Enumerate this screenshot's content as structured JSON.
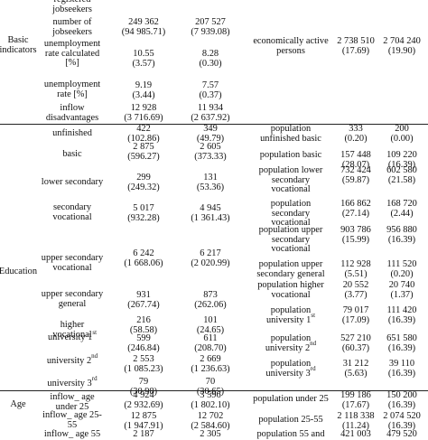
{
  "basic": {
    "group": "Basic indicators",
    "rows": [
      {
        "label": "registered jobseekers",
        "v1": "",
        "v2": ""
      },
      {
        "label": "number of jobseekers",
        "v1": "249 362",
        "s1": "(94 985.71)",
        "v2": "207 527",
        "s2": "(7 939.08)"
      },
      {
        "label": "unemployment rate calculated [%]",
        "v1": "10.55",
        "s1": "(3.57)",
        "v2": "8.28",
        "s2": "(0.30)"
      },
      {
        "label": "unemployment rate [%]",
        "v1": "9.19",
        "s1": "(3.44)",
        "v2": "7.57",
        "s2": "(0.37)"
      },
      {
        "label": "inflow disadvantages",
        "v1": "12 928",
        "s1": "(3 716.69)",
        "v2": "11 934",
        "s2": "(2 637.92)"
      }
    ],
    "right_label": "economically active persons",
    "right_v1": "2 738 510",
    "right_s1": "(17.69)",
    "right_v2": "2 704 240",
    "right_s2": "(19.90)"
  },
  "education": {
    "group": "Education",
    "rows": [
      {
        "label": "unfinished",
        "v1": "422",
        "s1": "(102.86)",
        "v2": "349",
        "s2": "(49.79)",
        "rlabel": "population unfinished basic",
        "r1": "333",
        "rs1": "(0.20)",
        "r2": "200",
        "rs2": "(0.00)"
      },
      {
        "label": "basic",
        "v1": "2 875",
        "s1": "(596.27)",
        "v2": "2 605",
        "s2": "(373.33)",
        "rlabel": "population basic",
        "r1": "157 448",
        "rs1": "(28.07)",
        "r2": "109 220",
        "rs2": "(16.39)"
      },
      {
        "label": "lower secondary",
        "v1": "299",
        "s1": "(249.32)",
        "v2": "131",
        "s2": "(53.36)",
        "rlabel": "population lower secondary vocational",
        "r1": "732 424",
        "rs1": "(59.87)",
        "r2": "602 580",
        "rs2": "(21.58)"
      },
      {
        "label": "secondary vocational",
        "v1": "5 017",
        "s1": "(932.28)",
        "v2": "4 945",
        "s2": "(1 361.43)",
        "rlabel": "population secondary vocational",
        "r1": "166 862",
        "rs1": "(27.14)",
        "r2": "168 720",
        "rs2": "(2.44)"
      },
      {
        "label": "upper secondary vocational",
        "v1": "6 242",
        "s1": "(1 668.06)",
        "v2": "6 217",
        "s2": "(2 020.99)",
        "rlabel": "population upper secondary vocational",
        "r1": "903 786",
        "rs1": "(15.99)",
        "r2": "956 880",
        "rs2": "(16.39)"
      },
      {
        "label": "upper secondary general",
        "v1": "931",
        "s1": "(267.74)",
        "v2": "873",
        "s2": "(262.06)",
        "rlabel": "population upper secondary general",
        "r1": "112 928",
        "rs1": "(5.51)",
        "r2": "111 520",
        "rs2": "(0.20)"
      },
      {
        "label": "higher vocational",
        "v1": "216",
        "s1": "(58.58)",
        "v2": "101",
        "s2": "(24.65)",
        "rlabel": "population higher vocational",
        "r1": "20 552",
        "rs1": "(3.77)",
        "r2": "20 740",
        "rs2": "(1.37)"
      },
      {
        "label": "university 1st",
        "v1": "599",
        "s1": "(246.84)",
        "v2": "611",
        "s2": "(208.70)",
        "rlabel": "population university 1st",
        "r1": "79 017",
        "rs1": "(17.09)",
        "r2": "111 420",
        "rs2": "(16.39)"
      },
      {
        "label": "university 2nd",
        "v1": "2 553",
        "s1": "(1 085.23)",
        "v2": "2 669",
        "s2": "(1 236.63)",
        "rlabel": "population university 2nd",
        "r1": "527 210",
        "rs1": "(60.37)",
        "r2": "651 580",
        "rs2": "(16.39)"
      },
      {
        "label": "university 3rd",
        "v1": "79",
        "s1": "(30.98)",
        "v2": "70",
        "s2": "(30.65)",
        "rlabel": "population university 3rd",
        "r1": "31 212",
        "rs1": "(5.63)",
        "r2": "39 110",
        "rs2": "(16.39)"
      }
    ]
  },
  "age": {
    "group": "Age",
    "rows": [
      {
        "label": "inflow_ age under 25",
        "v1": "4 924",
        "s1": "(2 932.69)",
        "v2": "3 596",
        "s2": "(1 802.10)",
        "rlabel": "population under 25",
        "r1": "199 186",
        "rs1": "(17.67)",
        "r2": "150 200",
        "rs2": "(16.39)"
      },
      {
        "label": "inflow_ age 25-55",
        "v1": "12 875",
        "s1": "(1 947.91)",
        "v2": "12 702",
        "s2": "(2 584.60)",
        "rlabel": "population 25-55",
        "r1": "2 118 338",
        "rs1": "(11.24)",
        "r2": "2 074 520",
        "rs2": "(16.39)"
      },
      {
        "label": "inflow_ age 55",
        "v1": "2 187",
        "s1": "",
        "v2": "2 305",
        "s2": "",
        "rlabel": "population 55 and",
        "r1": "421 003",
        "rs1": "",
        "r2": "479 520",
        "rs2": ""
      }
    ]
  }
}
